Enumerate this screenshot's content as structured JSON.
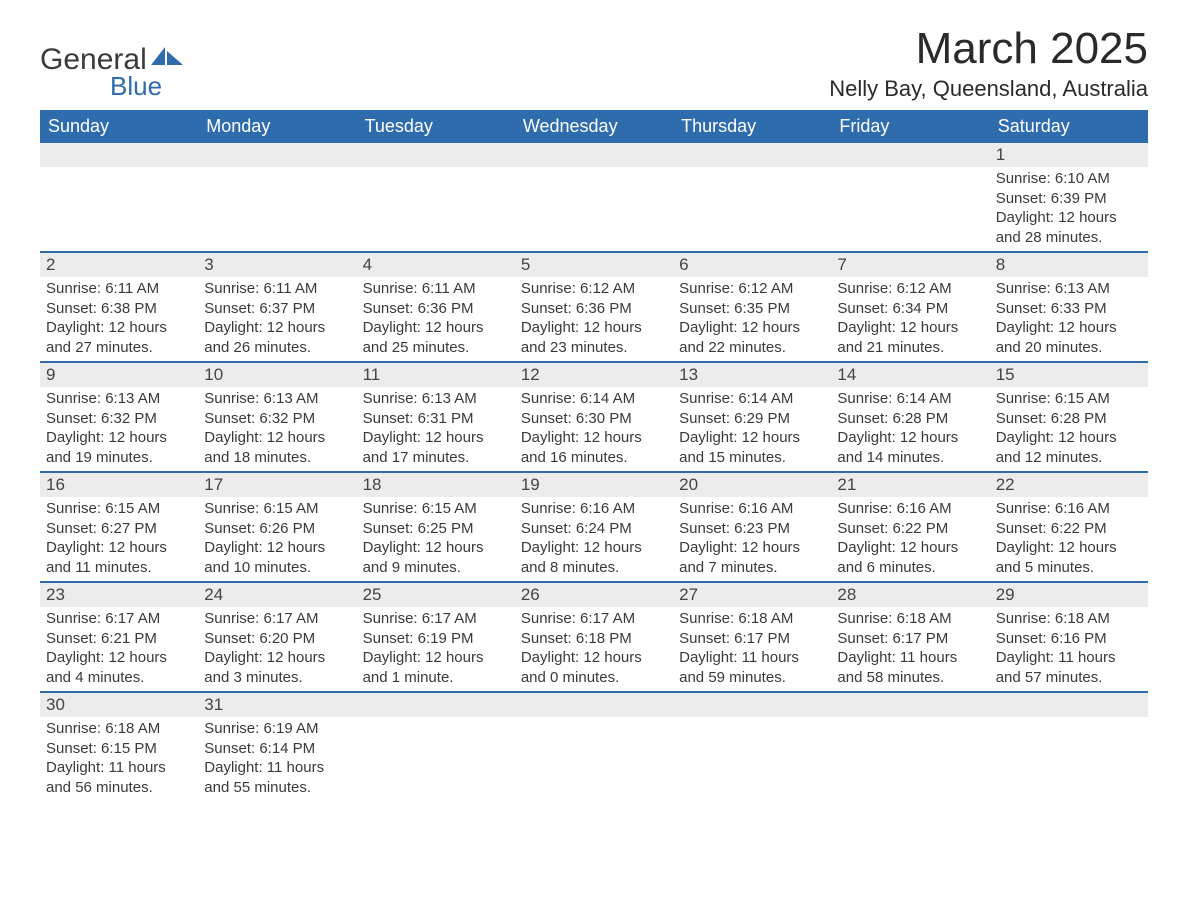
{
  "brand": {
    "name": "General",
    "sub": "Blue",
    "accent_color": "#2e6cae",
    "text_color": "#3a3a3a"
  },
  "title": "March 2025",
  "location": "Nelly Bay, Queensland, Australia",
  "colors": {
    "header_bg": "#2e6cae",
    "header_text": "#ffffff",
    "daynum_bg": "#ececec",
    "row_divider": "#2e6cae",
    "body_text": "#3a3a3a",
    "page_bg": "#ffffff"
  },
  "weekdays": [
    "Sunday",
    "Monday",
    "Tuesday",
    "Wednesday",
    "Thursday",
    "Friday",
    "Saturday"
  ],
  "weeks": [
    [
      null,
      null,
      null,
      null,
      null,
      null,
      {
        "n": "1",
        "sr": "Sunrise: 6:10 AM",
        "ss": "Sunset: 6:39 PM",
        "d1": "Daylight: 12 hours",
        "d2": "and 28 minutes."
      }
    ],
    [
      {
        "n": "2",
        "sr": "Sunrise: 6:11 AM",
        "ss": "Sunset: 6:38 PM",
        "d1": "Daylight: 12 hours",
        "d2": "and 27 minutes."
      },
      {
        "n": "3",
        "sr": "Sunrise: 6:11 AM",
        "ss": "Sunset: 6:37 PM",
        "d1": "Daylight: 12 hours",
        "d2": "and 26 minutes."
      },
      {
        "n": "4",
        "sr": "Sunrise: 6:11 AM",
        "ss": "Sunset: 6:36 PM",
        "d1": "Daylight: 12 hours",
        "d2": "and 25 minutes."
      },
      {
        "n": "5",
        "sr": "Sunrise: 6:12 AM",
        "ss": "Sunset: 6:36 PM",
        "d1": "Daylight: 12 hours",
        "d2": "and 23 minutes."
      },
      {
        "n": "6",
        "sr": "Sunrise: 6:12 AM",
        "ss": "Sunset: 6:35 PM",
        "d1": "Daylight: 12 hours",
        "d2": "and 22 minutes."
      },
      {
        "n": "7",
        "sr": "Sunrise: 6:12 AM",
        "ss": "Sunset: 6:34 PM",
        "d1": "Daylight: 12 hours",
        "d2": "and 21 minutes."
      },
      {
        "n": "8",
        "sr": "Sunrise: 6:13 AM",
        "ss": "Sunset: 6:33 PM",
        "d1": "Daylight: 12 hours",
        "d2": "and 20 minutes."
      }
    ],
    [
      {
        "n": "9",
        "sr": "Sunrise: 6:13 AM",
        "ss": "Sunset: 6:32 PM",
        "d1": "Daylight: 12 hours",
        "d2": "and 19 minutes."
      },
      {
        "n": "10",
        "sr": "Sunrise: 6:13 AM",
        "ss": "Sunset: 6:32 PM",
        "d1": "Daylight: 12 hours",
        "d2": "and 18 minutes."
      },
      {
        "n": "11",
        "sr": "Sunrise: 6:13 AM",
        "ss": "Sunset: 6:31 PM",
        "d1": "Daylight: 12 hours",
        "d2": "and 17 minutes."
      },
      {
        "n": "12",
        "sr": "Sunrise: 6:14 AM",
        "ss": "Sunset: 6:30 PM",
        "d1": "Daylight: 12 hours",
        "d2": "and 16 minutes."
      },
      {
        "n": "13",
        "sr": "Sunrise: 6:14 AM",
        "ss": "Sunset: 6:29 PM",
        "d1": "Daylight: 12 hours",
        "d2": "and 15 minutes."
      },
      {
        "n": "14",
        "sr": "Sunrise: 6:14 AM",
        "ss": "Sunset: 6:28 PM",
        "d1": "Daylight: 12 hours",
        "d2": "and 14 minutes."
      },
      {
        "n": "15",
        "sr": "Sunrise: 6:15 AM",
        "ss": "Sunset: 6:28 PM",
        "d1": "Daylight: 12 hours",
        "d2": "and 12 minutes."
      }
    ],
    [
      {
        "n": "16",
        "sr": "Sunrise: 6:15 AM",
        "ss": "Sunset: 6:27 PM",
        "d1": "Daylight: 12 hours",
        "d2": "and 11 minutes."
      },
      {
        "n": "17",
        "sr": "Sunrise: 6:15 AM",
        "ss": "Sunset: 6:26 PM",
        "d1": "Daylight: 12 hours",
        "d2": "and 10 minutes."
      },
      {
        "n": "18",
        "sr": "Sunrise: 6:15 AM",
        "ss": "Sunset: 6:25 PM",
        "d1": "Daylight: 12 hours",
        "d2": "and 9 minutes."
      },
      {
        "n": "19",
        "sr": "Sunrise: 6:16 AM",
        "ss": "Sunset: 6:24 PM",
        "d1": "Daylight: 12 hours",
        "d2": "and 8 minutes."
      },
      {
        "n": "20",
        "sr": "Sunrise: 6:16 AM",
        "ss": "Sunset: 6:23 PM",
        "d1": "Daylight: 12 hours",
        "d2": "and 7 minutes."
      },
      {
        "n": "21",
        "sr": "Sunrise: 6:16 AM",
        "ss": "Sunset: 6:22 PM",
        "d1": "Daylight: 12 hours",
        "d2": "and 6 minutes."
      },
      {
        "n": "22",
        "sr": "Sunrise: 6:16 AM",
        "ss": "Sunset: 6:22 PM",
        "d1": "Daylight: 12 hours",
        "d2": "and 5 minutes."
      }
    ],
    [
      {
        "n": "23",
        "sr": "Sunrise: 6:17 AM",
        "ss": "Sunset: 6:21 PM",
        "d1": "Daylight: 12 hours",
        "d2": "and 4 minutes."
      },
      {
        "n": "24",
        "sr": "Sunrise: 6:17 AM",
        "ss": "Sunset: 6:20 PM",
        "d1": "Daylight: 12 hours",
        "d2": "and 3 minutes."
      },
      {
        "n": "25",
        "sr": "Sunrise: 6:17 AM",
        "ss": "Sunset: 6:19 PM",
        "d1": "Daylight: 12 hours",
        "d2": "and 1 minute."
      },
      {
        "n": "26",
        "sr": "Sunrise: 6:17 AM",
        "ss": "Sunset: 6:18 PM",
        "d1": "Daylight: 12 hours",
        "d2": "and 0 minutes."
      },
      {
        "n": "27",
        "sr": "Sunrise: 6:18 AM",
        "ss": "Sunset: 6:17 PM",
        "d1": "Daylight: 11 hours",
        "d2": "and 59 minutes."
      },
      {
        "n": "28",
        "sr": "Sunrise: 6:18 AM",
        "ss": "Sunset: 6:17 PM",
        "d1": "Daylight: 11 hours",
        "d2": "and 58 minutes."
      },
      {
        "n": "29",
        "sr": "Sunrise: 6:18 AM",
        "ss": "Sunset: 6:16 PM",
        "d1": "Daylight: 11 hours",
        "d2": "and 57 minutes."
      }
    ],
    [
      {
        "n": "30",
        "sr": "Sunrise: 6:18 AM",
        "ss": "Sunset: 6:15 PM",
        "d1": "Daylight: 11 hours",
        "d2": "and 56 minutes."
      },
      {
        "n": "31",
        "sr": "Sunrise: 6:19 AM",
        "ss": "Sunset: 6:14 PM",
        "d1": "Daylight: 11 hours",
        "d2": "and 55 minutes."
      },
      null,
      null,
      null,
      null,
      null
    ]
  ]
}
